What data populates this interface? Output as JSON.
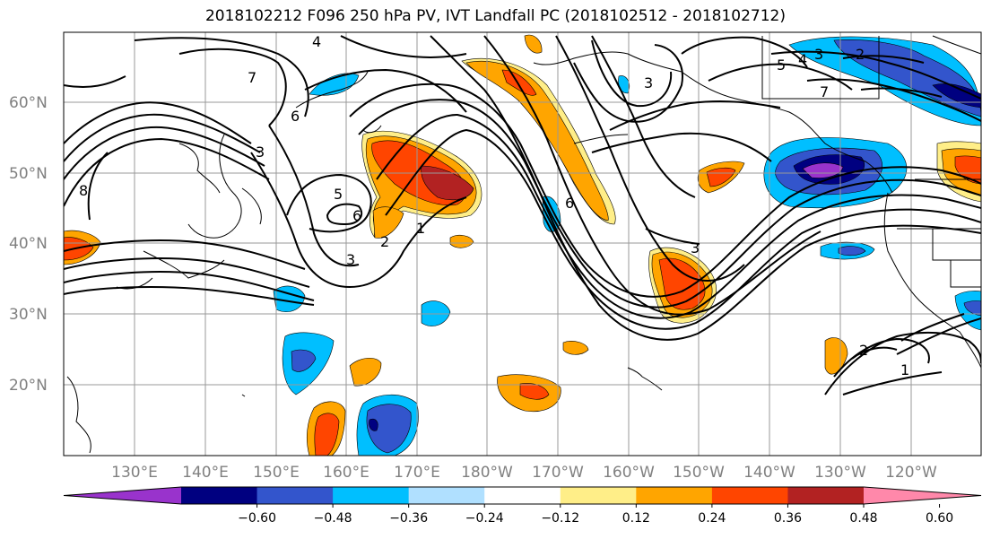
{
  "title": "2018102212 F096 250 hPa PV, IVT Landfall PC (2018102512 - 2018102712)",
  "lon_labels": [
    "130°E",
    "140°E",
    "150°E",
    "160°E",
    "170°E",
    "180°W",
    "170°W",
    "160°W",
    "150°W",
    "140°W",
    "130°W",
    "120°W"
  ],
  "lat_labels": [
    "60°N",
    "50°N",
    "40°N",
    "30°N",
    "20°N"
  ],
  "colorbar": {
    "ticks": [
      "−0.60",
      "−0.48",
      "−0.36",
      "−0.24",
      "−0.12",
      "0.12",
      "0.24",
      "0.36",
      "0.48",
      "0.60"
    ],
    "colors": [
      "#9933cc",
      "#000080",
      "#3355cc",
      "#00bfff",
      "#b0e0ff",
      "#ffffff",
      "#ffee88",
      "#ffa500",
      "#ff4500",
      "#b22222",
      "#ff88aa"
    ]
  },
  "contour_labels": [
    "4",
    "7",
    "6",
    "3",
    "8",
    "5",
    "6",
    "2",
    "1",
    "3",
    "5",
    "4",
    "3",
    "2",
    "7",
    "3",
    "6",
    "3",
    "2",
    "1"
  ]
}
